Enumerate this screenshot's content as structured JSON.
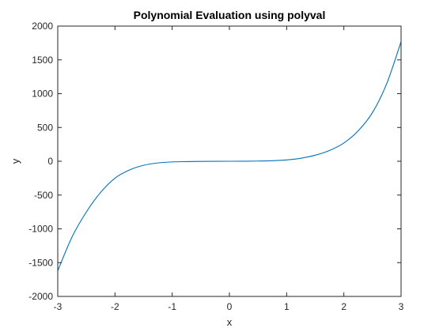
{
  "chart_data": {
    "type": "line",
    "title": "Polynomial Evaluation using polyval",
    "xlabel": "x",
    "ylabel": "y",
    "xlim": [
      -3,
      3
    ],
    "ylim": [
      -2000,
      2000
    ],
    "xticks": [
      -3,
      -2,
      -1,
      0,
      1,
      2,
      3
    ],
    "xtick_labels": [
      "-3",
      "-2",
      "-1",
      "0",
      "1",
      "2",
      "3"
    ],
    "yticks": [
      -2000,
      -1500,
      -1000,
      -500,
      0,
      500,
      1000,
      1500,
      2000
    ],
    "ytick_labels": [
      "-2000",
      "-1500",
      "-1000",
      "-500",
      "0",
      "500",
      "1000",
      "1500",
      "2000"
    ],
    "grid": false,
    "series": [
      {
        "color": "#0072BD",
        "x": [
          -3,
          -2.75,
          -2.5,
          -2.25,
          -2,
          -1.75,
          -1.5,
          -1.25,
          -1,
          -0.75,
          -0.5,
          -0.25,
          0,
          0.25,
          0.5,
          0.75,
          1,
          1.25,
          1.5,
          1.75,
          2,
          2.25,
          2.5,
          2.75,
          3
        ],
        "y": [
          -1620,
          -1120,
          -750,
          -460,
          -250,
          -130,
          -60,
          -25,
          -10,
          -5,
          -2,
          -1,
          0,
          1,
          3,
          8,
          20,
          45,
          90,
          160,
          270,
          450,
          720,
          1150,
          1770
        ]
      }
    ]
  }
}
